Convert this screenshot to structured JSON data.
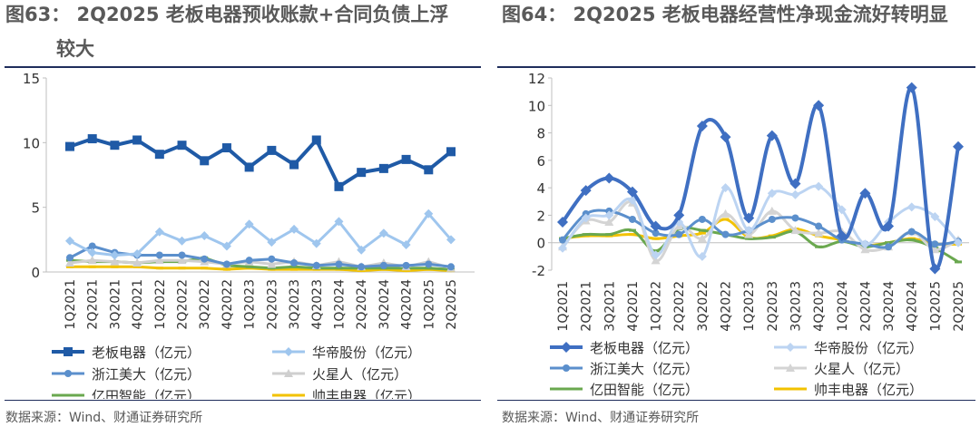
{
  "left": {
    "title_line1": "图63：    2Q2025  老板电器预收账款+合同负债上浮",
    "title_line2": "较大",
    "source": "数据来源：Wind、财通证券研究所",
    "chart_data": {
      "type": "line",
      "categories": [
        "1Q2021",
        "2Q2021",
        "3Q2021",
        "4Q2021",
        "1Q2022",
        "2Q2022",
        "3Q2022",
        "4Q2022",
        "1Q2023",
        "2Q2023",
        "3Q2023",
        "4Q2023",
        "1Q2024",
        "2Q2024",
        "3Q2024",
        "4Q2024",
        "1Q2025",
        "2Q2025"
      ],
      "ylim": [
        0,
        15
      ],
      "yticks": [
        0,
        5,
        10,
        15
      ],
      "series": [
        {
          "name": "老板电器（亿元）",
          "color": "#1f5aa6",
          "marker": "square",
          "values": [
            9.7,
            10.3,
            9.8,
            10.2,
            9.1,
            9.8,
            8.6,
            9.6,
            8.1,
            9.4,
            8.3,
            10.2,
            6.6,
            7.7,
            8.0,
            8.7,
            7.9,
            9.3
          ]
        },
        {
          "name": "华帝股份（亿元）",
          "color": "#9fc6ee",
          "marker": "diamond",
          "values": [
            2.4,
            1.5,
            1.3,
            1.4,
            3.1,
            2.4,
            2.8,
            2.0,
            3.7,
            2.3,
            3.3,
            2.2,
            3.9,
            1.7,
            3.0,
            2.1,
            4.5,
            2.5
          ]
        },
        {
          "name": "浙江美大（亿元）",
          "color": "#5b8fcc",
          "marker": "circle",
          "values": [
            1.1,
            2.0,
            1.5,
            1.3,
            1.3,
            1.3,
            1.0,
            0.6,
            0.9,
            1.0,
            0.7,
            0.5,
            0.6,
            0.4,
            0.5,
            0.5,
            0.6,
            0.4
          ]
        },
        {
          "name": "火星人（亿元）",
          "color": "#cfcfcf",
          "marker": "triangle",
          "values": [
            0.7,
            0.9,
            0.8,
            0.7,
            0.9,
            0.9,
            0.8,
            0.6,
            0.8,
            0.6,
            0.8,
            0.5,
            0.8,
            0.4,
            0.7,
            0.4,
            0.8,
            0.3
          ]
        },
        {
          "name": "亿田智能（亿元）",
          "color": "#6aa84f",
          "marker": "dash",
          "values": [
            0.9,
            0.8,
            0.8,
            0.7,
            0.8,
            0.8,
            1.1,
            0.5,
            0.4,
            0.3,
            0.4,
            0.3,
            0.3,
            0.3,
            0.3,
            0.3,
            0.3,
            0.2
          ]
        },
        {
          "name": "帅丰电器（亿元）",
          "color": "#f2c200",
          "marker": "dash",
          "values": [
            0.4,
            0.4,
            0.4,
            0.4,
            0.3,
            0.3,
            0.3,
            0.2,
            0.3,
            0.2,
            0.2,
            0.2,
            0.2,
            0.1,
            0.2,
            0.1,
            0.2,
            0.1
          ]
        }
      ]
    }
  },
  "right": {
    "title_line1": "图64：    2Q2025  老板电器经营性净现金流好转明显",
    "source": "数据来源：Wind、财通证券研究所",
    "chart_data": {
      "type": "line",
      "categories": [
        "1Q2021",
        "2Q2021",
        "3Q2021",
        "4Q2021",
        "1Q2022",
        "2Q2022",
        "3Q2022",
        "4Q2022",
        "1Q2023",
        "2Q2023",
        "3Q2023",
        "4Q2023",
        "1Q2024",
        "2Q2024",
        "3Q2024",
        "4Q2024",
        "1Q2025",
        "2Q2025"
      ],
      "ylim": [
        -2,
        12
      ],
      "yticks": [
        -2,
        0,
        2,
        4,
        6,
        8,
        10,
        12
      ],
      "series": [
        {
          "name": "老板电器（亿元）",
          "color": "#3f6fc2",
          "marker": "diamond",
          "values": [
            1.5,
            3.8,
            4.7,
            3.7,
            1.2,
            2.0,
            8.5,
            7.7,
            1.8,
            7.8,
            4.3,
            10.0,
            0.5,
            3.6,
            1.2,
            11.3,
            -1.9,
            7.0
          ]
        },
        {
          "name": "华帝股份（亿元）",
          "color": "#bcd4f2",
          "marker": "diamond",
          "values": [
            -0.4,
            1.8,
            2.0,
            3.1,
            -0.9,
            1.5,
            -1.0,
            4.0,
            0.9,
            3.6,
            3.5,
            4.1,
            2.4,
            -0.1,
            1.5,
            2.6,
            1.9,
            0.0
          ]
        },
        {
          "name": "浙江美大（亿元）",
          "color": "#5b8fcc",
          "marker": "circle",
          "values": [
            0.2,
            2.1,
            2.3,
            1.7,
            0.7,
            0.6,
            1.7,
            0.6,
            0.9,
            1.7,
            1.8,
            1.2,
            0.2,
            -0.1,
            -0.3,
            0.8,
            -0.1,
            0.1
          ]
        },
        {
          "name": "火星人（亿元）",
          "color": "#d4d4d4",
          "marker": "triangle",
          "values": [
            -0.3,
            1.6,
            1.5,
            2.9,
            -1.3,
            1.2,
            0.3,
            2.1,
            0.6,
            2.3,
            0.9,
            0.7,
            0.8,
            -0.5,
            -0.3,
            0.8,
            -0.5,
            0.2
          ]
        },
        {
          "name": "亿田智能（亿元）",
          "color": "#6aa84f",
          "marker": "dash",
          "values": [
            0.3,
            0.6,
            0.6,
            0.9,
            -0.6,
            1.0,
            0.9,
            0.6,
            0.3,
            0.4,
            0.8,
            -0.3,
            0.1,
            -0.3,
            0.0,
            0.2,
            -0.4,
            -1.4
          ]
        },
        {
          "name": "帅丰电器（亿元）",
          "color": "#f2c200",
          "marker": "dash",
          "values": [
            0.3,
            0.5,
            0.5,
            0.6,
            0.3,
            0.5,
            0.7,
            1.7,
            0.4,
            0.5,
            1.0,
            0.5,
            0.2,
            -0.2,
            0.0,
            0.3,
            -0.1,
            -0.1
          ]
        }
      ]
    }
  }
}
